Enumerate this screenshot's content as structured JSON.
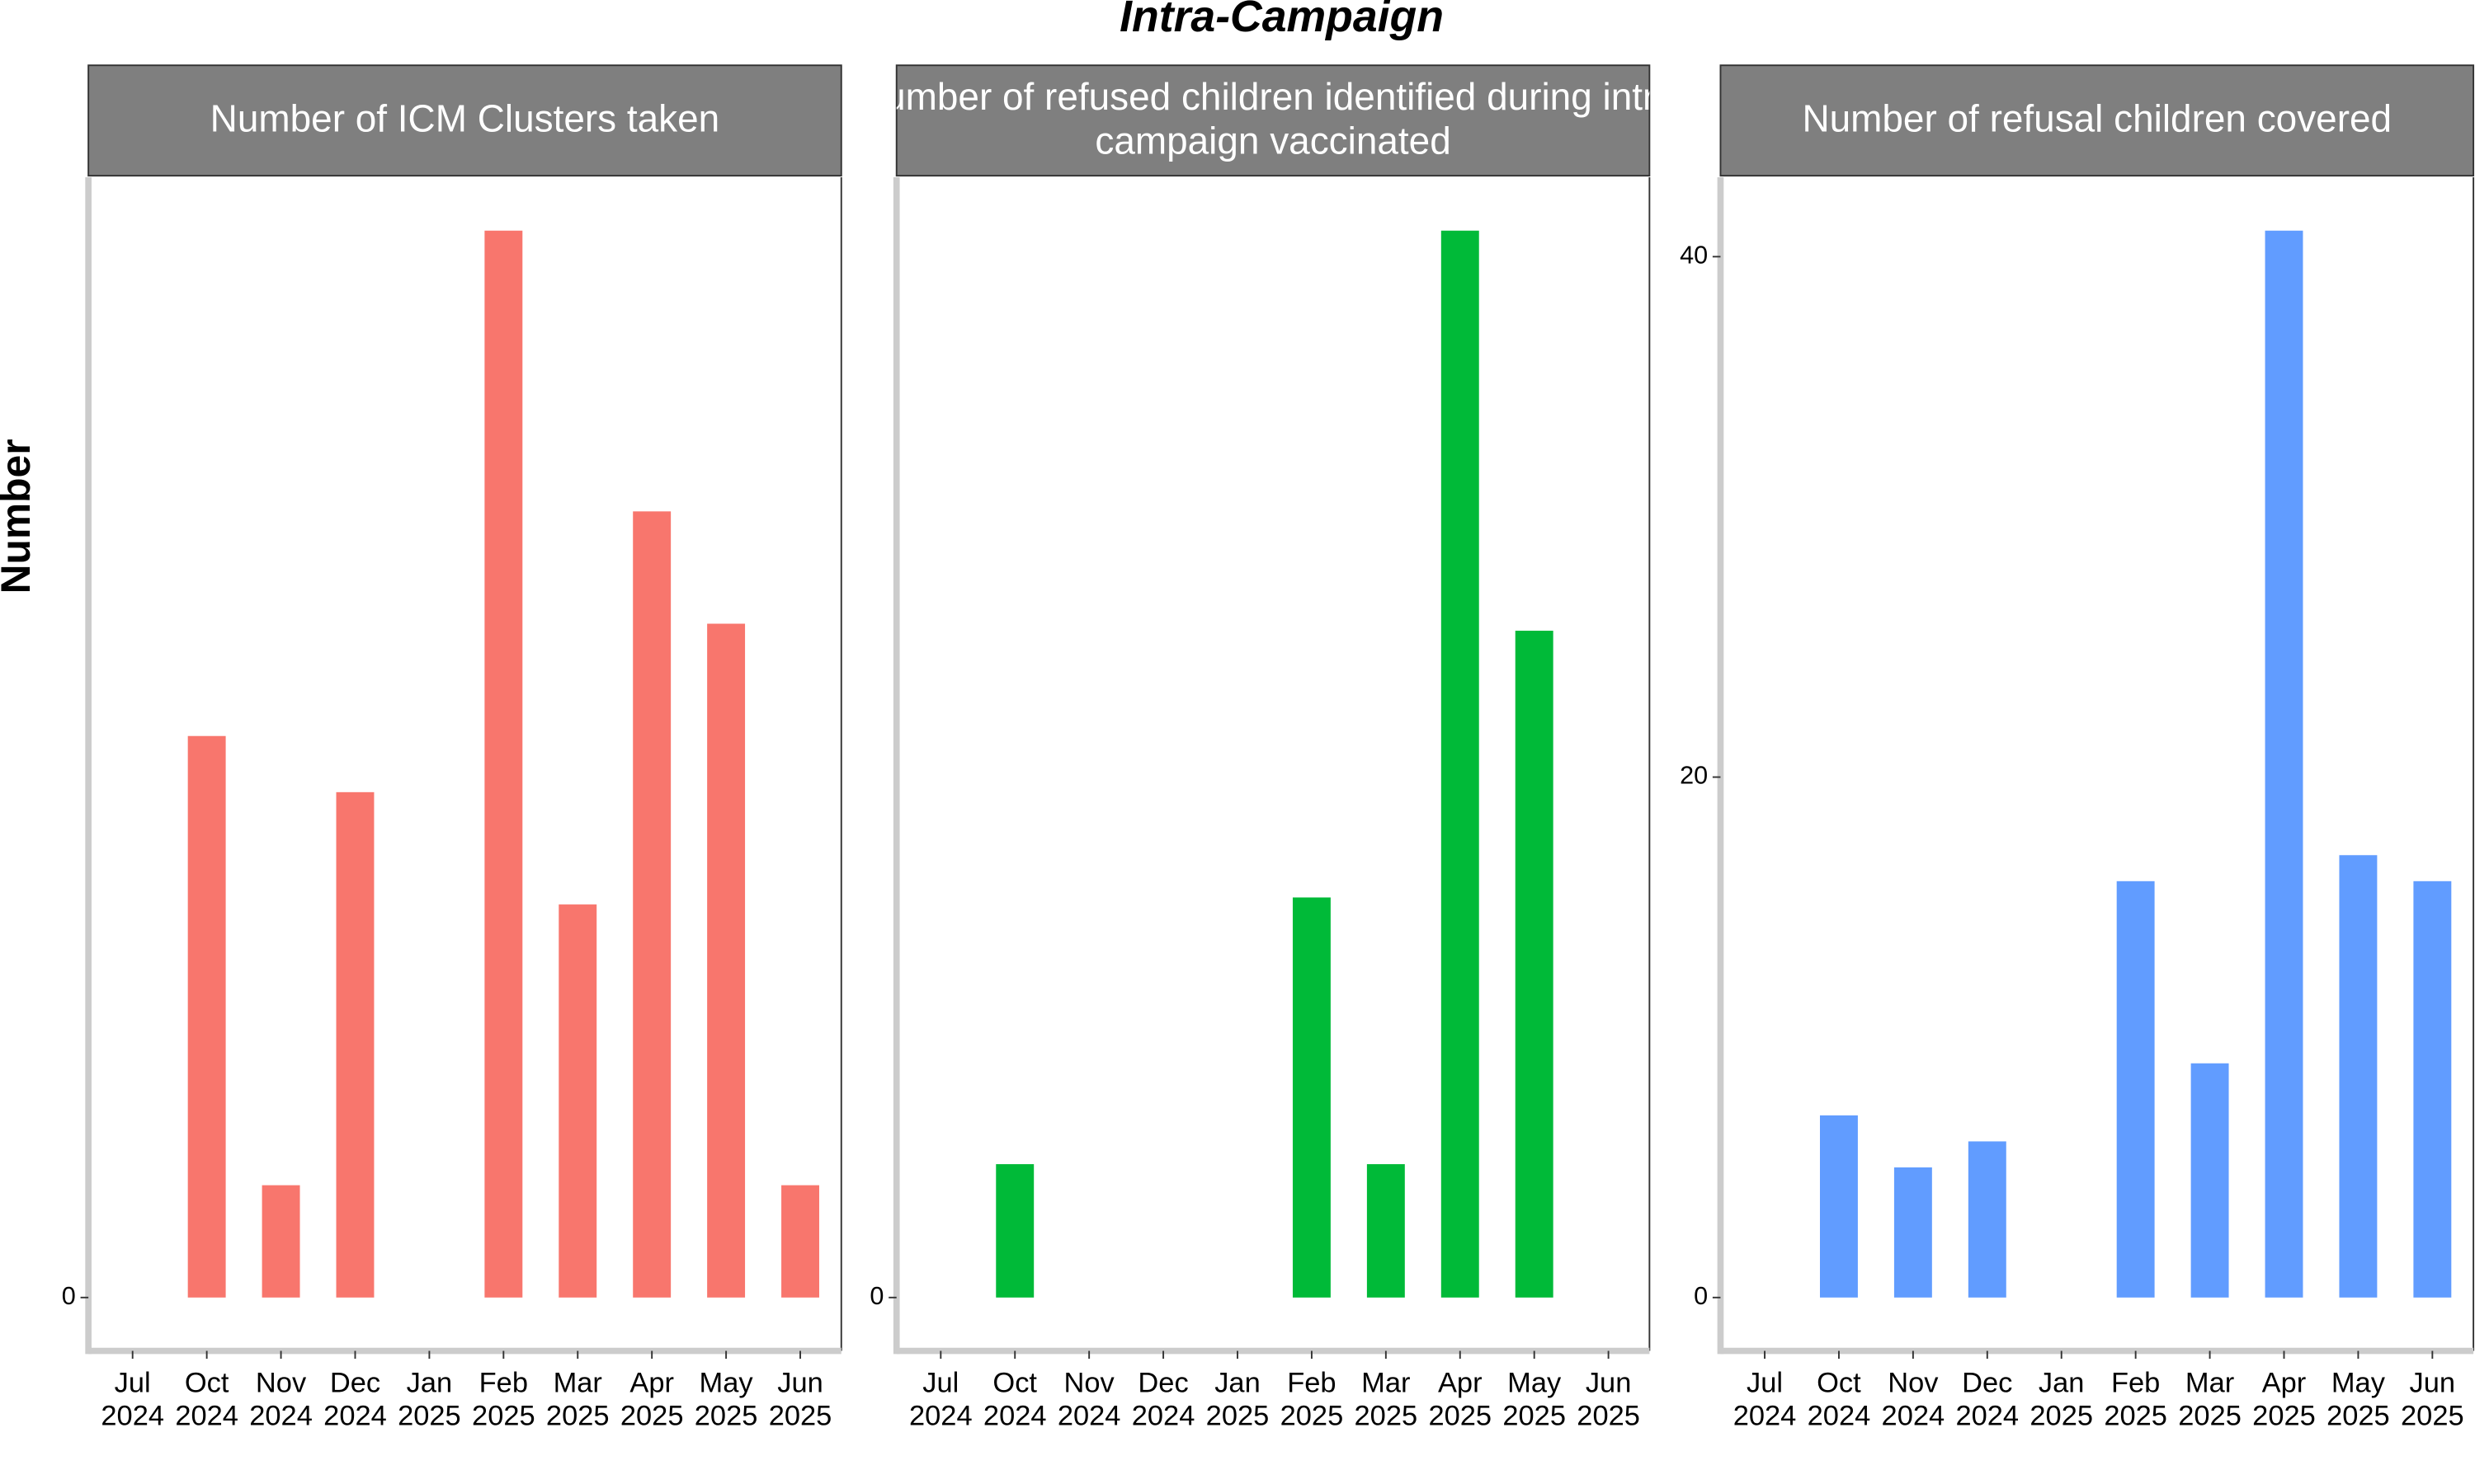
{
  "title": "Intra-Campaign",
  "y_label": "Number",
  "chart_data": [
    {
      "type": "bar",
      "title": "Number of ICM Clusters taken",
      "color": "#F8766D",
      "categories": [
        "Jul 2024",
        "Oct 2024",
        "Nov 2024",
        "Dec 2024",
        "Jan 2025",
        "Feb 2025",
        "Mar 2025",
        "Apr 2025",
        "May 2025",
        "Jun 2025"
      ],
      "values": [
        null,
        10,
        2,
        9,
        null,
        19,
        7,
        14,
        12,
        2
      ],
      "ylim": [
        -0.95,
        19.95
      ],
      "yticks": [
        0
      ]
    },
    {
      "type": "bar",
      "title": "Number of refused children identified during intra-campaign vaccinated",
      "color": "#00BA38",
      "categories": [
        "Jul 2024",
        "Oct 2024",
        "Nov 2024",
        "Dec 2024",
        "Jan 2025",
        "Feb 2025",
        "Mar 2025",
        "Apr 2025",
        "May 2025",
        "Jun 2025"
      ],
      "values": [
        null,
        1,
        null,
        null,
        null,
        3,
        1,
        8,
        5,
        null
      ],
      "ylim": [
        -0.4,
        8.4
      ],
      "yticks": [
        0
      ]
    },
    {
      "type": "bar",
      "title": "Number of refusal children covered",
      "color": "#619CFF",
      "categories": [
        "Jul 2024",
        "Oct 2024",
        "Nov 2024",
        "Dec 2024",
        "Jan 2025",
        "Feb 2025",
        "Mar 2025",
        "Apr 2025",
        "May 2025",
        "Jun 2025"
      ],
      "values": [
        null,
        7,
        5,
        6,
        null,
        16,
        9,
        41,
        17,
        16
      ],
      "ylim": [
        -2.05,
        43.05
      ],
      "yticks": [
        0,
        20,
        40
      ]
    }
  ]
}
